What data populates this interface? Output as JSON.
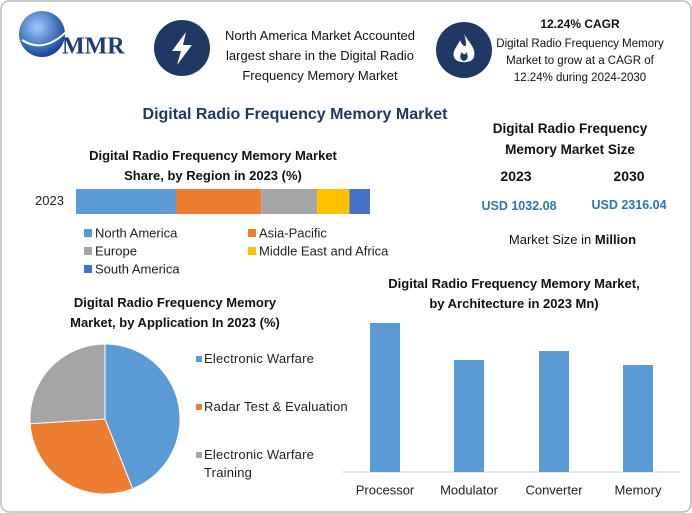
{
  "header": {
    "logo": "MMR",
    "region_note": "North America Market Accounted largest share in the Digital Radio Frequency Memory Market",
    "cagr": "12.24% CAGR",
    "cagr_note": "Digital Radio Frequency Memory Market to grow at a CAGR of 12.24% during 2024-2030"
  },
  "title": "Digital Radio Frequency Memory Market",
  "market_size": {
    "title": "Digital Radio Frequency Memory Market Size",
    "years": [
      "2023",
      "2030"
    ],
    "values": [
      "USD 1032.08",
      "USD 2316.04"
    ],
    "unit_prefix": "Market Size in",
    "unit": "Million"
  },
  "chart_data": [
    {
      "type": "stacked_bar",
      "title": "Digital Radio Frequency Memory Market Share, by Region in 2023 (%)",
      "categories": [
        "2023"
      ],
      "series": [
        {
          "name": "North America",
          "color": "#5b9bd5",
          "values": [
            34
          ]
        },
        {
          "name": "Asia-Pacific",
          "color": "#ed7d31",
          "values": [
            29
          ]
        },
        {
          "name": "Europe",
          "color": "#a5a5a5",
          "values": [
            19
          ]
        },
        {
          "name": "Middle East and Africa",
          "color": "#ffc000",
          "values": [
            11
          ]
        },
        {
          "name": "South America",
          "color": "#4472c4",
          "values": [
            7
          ]
        }
      ]
    },
    {
      "type": "pie",
      "title": "Digital Radio Frequency Memory Market, by Application In 2023 (%)",
      "categories": [
        "Electronic Warfare",
        "Radar Test & Evaluation",
        "Electronic Warfare Training"
      ],
      "values": [
        44,
        30,
        26
      ],
      "colors": [
        "#5b9bd5",
        "#ed7d31",
        "#a5a5a5"
      ]
    },
    {
      "type": "bar",
      "title": "Digital Radio Frequency Memory Market, by Architecture in 2023 Mn)",
      "categories": [
        "Processor",
        "Modulator",
        "Converter",
        "Memory"
      ],
      "values": [
        149,
        112,
        121,
        107
      ],
      "color": "#5b9bd5"
    }
  ]
}
